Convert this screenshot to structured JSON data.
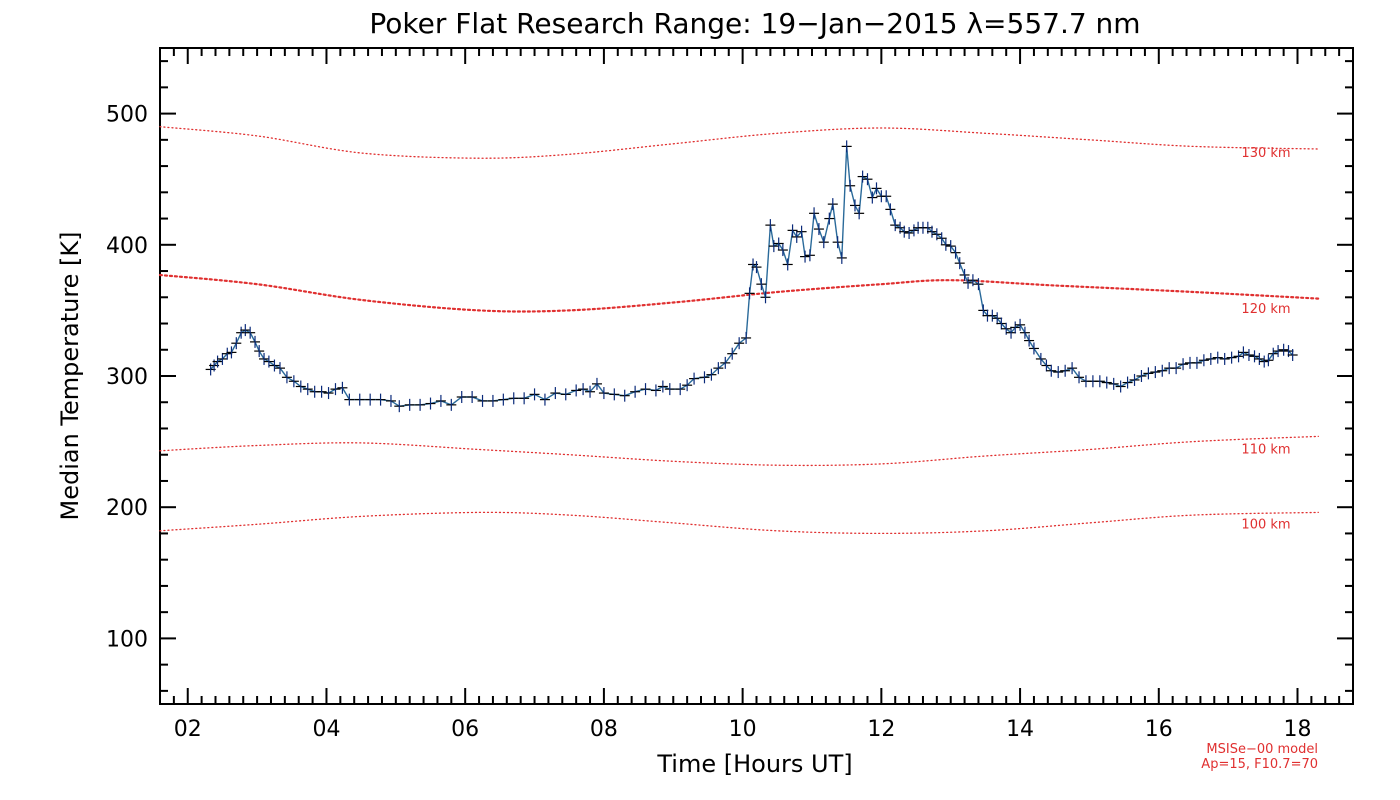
{
  "chart_data": {
    "type": "line",
    "title": "Poker Flat Research Range: 19−Jan−2015 λ=557.7 nm",
    "xlabel": "Time [Hours UT]",
    "ylabel": "Median Temperature [K]",
    "xlim": [
      1.6,
      18.8
    ],
    "ylim": [
      50,
      550
    ],
    "x_ticks": [
      2,
      4,
      6,
      8,
      10,
      12,
      14,
      16,
      18
    ],
    "x_tick_labels": [
      "02",
      "04",
      "06",
      "08",
      "10",
      "12",
      "14",
      "16",
      "18"
    ],
    "y_ticks": [
      100,
      200,
      300,
      400,
      500
    ],
    "y_tick_labels": [
      "100",
      "200",
      "300",
      "400",
      "500"
    ],
    "grid": false,
    "series": [
      {
        "role": "measured",
        "color": "#0a2a7a",
        "marker": "plus",
        "points": [
          [
            2.33,
            305
          ],
          [
            2.38,
            308
          ],
          [
            2.43,
            311
          ],
          [
            2.5,
            313
          ],
          [
            2.57,
            317
          ],
          [
            2.63,
            318
          ],
          [
            2.7,
            325
          ],
          [
            2.77,
            333
          ],
          [
            2.83,
            335
          ],
          [
            2.9,
            333
          ],
          [
            2.97,
            326
          ],
          [
            3.03,
            319
          ],
          [
            3.1,
            313
          ],
          [
            3.17,
            311
          ],
          [
            3.25,
            308
          ],
          [
            3.33,
            306
          ],
          [
            3.43,
            299
          ],
          [
            3.53,
            296
          ],
          [
            3.63,
            292
          ],
          [
            3.73,
            290
          ],
          [
            3.83,
            288
          ],
          [
            3.93,
            288
          ],
          [
            4.03,
            287
          ],
          [
            4.13,
            290
          ],
          [
            4.23,
            291
          ],
          [
            4.33,
            282
          ],
          [
            4.48,
            282
          ],
          [
            4.63,
            282
          ],
          [
            4.78,
            282
          ],
          [
            4.93,
            281
          ],
          [
            5.05,
            277
          ],
          [
            5.2,
            278
          ],
          [
            5.35,
            278
          ],
          [
            5.5,
            279
          ],
          [
            5.65,
            281
          ],
          [
            5.8,
            278
          ],
          [
            5.95,
            284
          ],
          [
            6.1,
            284
          ],
          [
            6.25,
            281
          ],
          [
            6.4,
            281
          ],
          [
            6.55,
            282
          ],
          [
            6.7,
            283
          ],
          [
            6.85,
            283
          ],
          [
            7.0,
            286
          ],
          [
            7.15,
            282
          ],
          [
            7.3,
            287
          ],
          [
            7.45,
            286
          ],
          [
            7.6,
            289
          ],
          [
            7.7,
            290
          ],
          [
            7.8,
            288
          ],
          [
            7.9,
            294
          ],
          [
            8.0,
            287
          ],
          [
            8.15,
            286
          ],
          [
            8.3,
            285
          ],
          [
            8.45,
            288
          ],
          [
            8.6,
            290
          ],
          [
            8.75,
            289
          ],
          [
            8.85,
            292
          ],
          [
            8.95,
            290
          ],
          [
            9.1,
            290
          ],
          [
            9.2,
            293
          ],
          [
            9.3,
            298
          ],
          [
            9.45,
            299
          ],
          [
            9.55,
            301
          ],
          [
            9.65,
            306
          ],
          [
            9.75,
            310
          ],
          [
            9.85,
            317
          ],
          [
            9.95,
            325
          ],
          [
            10.05,
            329
          ],
          [
            10.1,
            363
          ],
          [
            10.15,
            385
          ],
          [
            10.2,
            383
          ],
          [
            10.27,
            370
          ],
          [
            10.33,
            360
          ],
          [
            10.4,
            415
          ],
          [
            10.45,
            399
          ],
          [
            10.52,
            401
          ],
          [
            10.58,
            396
          ],
          [
            10.65,
            385
          ],
          [
            10.72,
            411
          ],
          [
            10.78,
            406
          ],
          [
            10.85,
            410
          ],
          [
            10.9,
            391
          ],
          [
            10.97,
            392
          ],
          [
            11.03,
            424
          ],
          [
            11.1,
            412
          ],
          [
            11.17,
            402
          ],
          [
            11.25,
            420
          ],
          [
            11.3,
            431
          ],
          [
            11.37,
            402
          ],
          [
            11.43,
            390
          ],
          [
            11.5,
            475
          ],
          [
            11.55,
            445
          ],
          [
            11.62,
            430
          ],
          [
            11.68,
            424
          ],
          [
            11.73,
            452
          ],
          [
            11.8,
            450
          ],
          [
            11.87,
            436
          ],
          [
            11.93,
            443
          ],
          [
            12.0,
            437
          ],
          [
            12.07,
            437
          ],
          [
            12.13,
            427
          ],
          [
            12.2,
            415
          ],
          [
            12.27,
            413
          ],
          [
            12.33,
            410
          ],
          [
            12.4,
            409
          ],
          [
            12.47,
            411
          ],
          [
            12.53,
            413
          ],
          [
            12.6,
            413
          ],
          [
            12.67,
            413
          ],
          [
            12.73,
            410
          ],
          [
            12.8,
            408
          ],
          [
            12.87,
            405
          ],
          [
            12.93,
            400
          ],
          [
            13.0,
            399
          ],
          [
            13.07,
            394
          ],
          [
            13.13,
            386
          ],
          [
            13.2,
            377
          ],
          [
            13.25,
            371
          ],
          [
            13.32,
            373
          ],
          [
            13.4,
            370
          ],
          [
            13.47,
            350
          ],
          [
            13.53,
            346
          ],
          [
            13.6,
            346
          ],
          [
            13.67,
            344
          ],
          [
            13.73,
            340
          ],
          [
            13.8,
            336
          ],
          [
            13.87,
            333
          ],
          [
            13.93,
            337
          ],
          [
            14.0,
            339
          ],
          [
            14.07,
            333
          ],
          [
            14.13,
            327
          ],
          [
            14.2,
            321
          ],
          [
            14.3,
            313
          ],
          [
            14.38,
            308
          ],
          [
            14.45,
            304
          ],
          [
            14.55,
            303
          ],
          [
            14.65,
            304
          ],
          [
            14.75,
            306
          ],
          [
            14.85,
            299
          ],
          [
            14.95,
            296
          ],
          [
            15.05,
            296
          ],
          [
            15.15,
            296
          ],
          [
            15.25,
            295
          ],
          [
            15.35,
            294
          ],
          [
            15.45,
            292
          ],
          [
            15.55,
            295
          ],
          [
            15.65,
            297
          ],
          [
            15.75,
            300
          ],
          [
            15.85,
            302
          ],
          [
            15.95,
            303
          ],
          [
            16.05,
            304
          ],
          [
            16.15,
            306
          ],
          [
            16.25,
            306
          ],
          [
            16.35,
            309
          ],
          [
            16.45,
            310
          ],
          [
            16.55,
            310
          ],
          [
            16.65,
            312
          ],
          [
            16.75,
            313
          ],
          [
            16.85,
            314
          ],
          [
            16.95,
            313
          ],
          [
            17.05,
            314
          ],
          [
            17.15,
            315
          ],
          [
            17.22,
            318
          ],
          [
            17.3,
            316
          ],
          [
            17.38,
            315
          ],
          [
            17.45,
            313
          ],
          [
            17.52,
            311
          ],
          [
            17.58,
            312
          ],
          [
            17.65,
            317
          ],
          [
            17.72,
            319
          ],
          [
            17.8,
            320
          ],
          [
            17.87,
            319
          ],
          [
            17.93,
            316
          ]
        ]
      },
      {
        "name": "130 km",
        "role": "model",
        "color": "#e03030",
        "style": "dotted",
        "points": [
          [
            1.6,
            490
          ],
          [
            3.0,
            483
          ],
          [
            4.5,
            470
          ],
          [
            6.2,
            466
          ],
          [
            7.5,
            469
          ],
          [
            9.0,
            477
          ],
          [
            10.5,
            485
          ],
          [
            12.0,
            489
          ],
          [
            13.5,
            485
          ],
          [
            15.0,
            480
          ],
          [
            16.5,
            475
          ],
          [
            18.3,
            473
          ]
        ]
      },
      {
        "name": "120 km",
        "role": "model",
        "color": "#e03030",
        "style": "dotted",
        "points": [
          [
            1.6,
            377
          ],
          [
            3.0,
            370
          ],
          [
            4.5,
            358
          ],
          [
            6.2,
            350
          ],
          [
            7.5,
            350
          ],
          [
            9.0,
            356
          ],
          [
            10.5,
            364
          ],
          [
            12.0,
            370
          ],
          [
            13.0,
            373
          ],
          [
            14.5,
            369
          ],
          [
            16.5,
            364
          ],
          [
            18.3,
            359
          ]
        ]
      },
      {
        "name": "110 km",
        "role": "model",
        "color": "#e03030",
        "style": "dotted",
        "points": [
          [
            1.6,
            243
          ],
          [
            3.0,
            247
          ],
          [
            4.5,
            249
          ],
          [
            6.2,
            244
          ],
          [
            7.5,
            240
          ],
          [
            9.0,
            235
          ],
          [
            10.5,
            232
          ],
          [
            12.0,
            233
          ],
          [
            13.5,
            239
          ],
          [
            15.0,
            244
          ],
          [
            16.5,
            250
          ],
          [
            18.3,
            254
          ]
        ]
      },
      {
        "name": "100 km",
        "role": "model",
        "color": "#e03030",
        "style": "dotted",
        "points": [
          [
            1.6,
            182
          ],
          [
            3.0,
            187
          ],
          [
            4.5,
            193
          ],
          [
            6.2,
            196
          ],
          [
            7.5,
            194
          ],
          [
            9.0,
            188
          ],
          [
            10.5,
            182
          ],
          [
            12.0,
            180
          ],
          [
            13.5,
            182
          ],
          [
            15.0,
            188
          ],
          [
            16.5,
            194
          ],
          [
            18.3,
            196
          ]
        ]
      }
    ],
    "annotations": [
      {
        "text": "130 km",
        "color": "#e03030",
        "x": 17.9,
        "y": 470
      },
      {
        "text": "120 km",
        "color": "#e03030",
        "x": 17.9,
        "y": 351
      },
      {
        "text": "110 km",
        "color": "#e03030",
        "x": 17.9,
        "y": 244
      },
      {
        "text": "100 km",
        "color": "#e03030",
        "x": 17.9,
        "y": 187
      }
    ],
    "footnote_lines": [
      "MSISe−00 model",
      "Ap=15, F10.7=70"
    ],
    "footnote_color": "#e03030"
  }
}
